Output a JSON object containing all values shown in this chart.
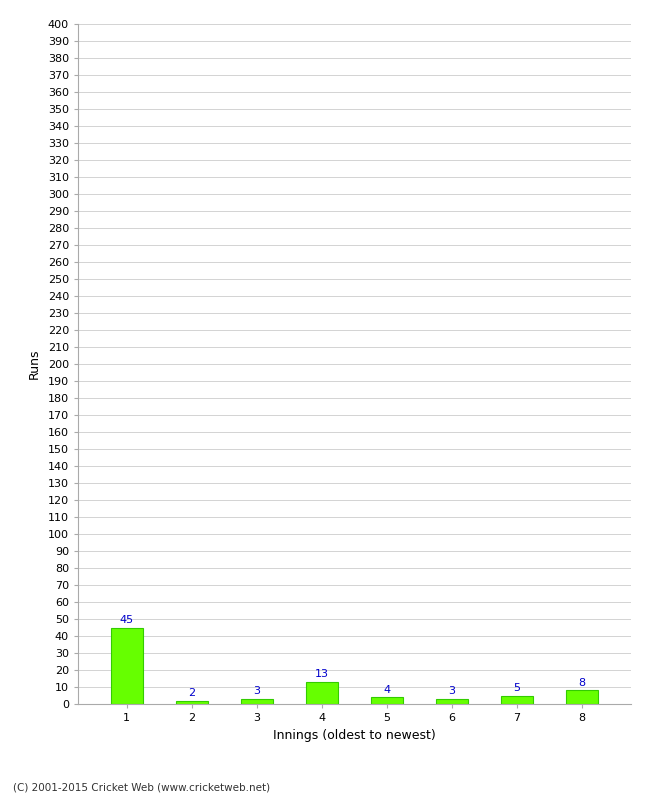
{
  "categories": [
    1,
    2,
    3,
    4,
    5,
    6,
    7,
    8
  ],
  "values": [
    45,
    2,
    3,
    13,
    4,
    3,
    5,
    8
  ],
  "bar_color": "#66ff00",
  "bar_edge_color": "#33cc00",
  "xlabel": "Innings (oldest to newest)",
  "ylabel": "Runs",
  "ylim": [
    0,
    400
  ],
  "ytick_major_step": 10,
  "label_color": "#0000cc",
  "background_color": "#ffffff",
  "grid_color": "#cccccc",
  "footer": "(C) 2001-2015 Cricket Web (www.cricketweb.net)"
}
